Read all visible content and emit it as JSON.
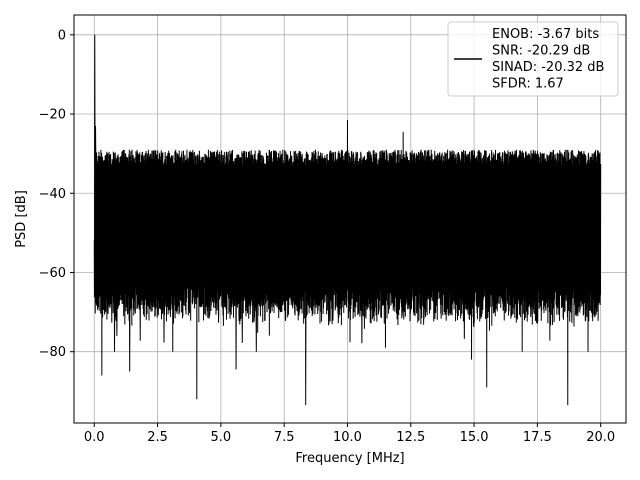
{
  "chart_data": {
    "type": "line",
    "title": "",
    "xlabel": "Frequency [MHz]",
    "ylabel": "PSD [dB]",
    "xlim": [
      -0.8,
      21.0
    ],
    "ylim": [
      -98,
      5
    ],
    "x_ticks": [
      0.0,
      2.5,
      5.0,
      7.5,
      10.0,
      12.5,
      15.0,
      17.5,
      20.0
    ],
    "x_tick_labels": [
      "0.0",
      "2.5",
      "5.0",
      "7.5",
      "10.0",
      "12.5",
      "15.0",
      "17.5",
      "20.0"
    ],
    "y_ticks": [
      0,
      -20,
      -40,
      -60,
      -80
    ],
    "y_tick_labels": [
      "0",
      "−20",
      "−40",
      "−60",
      "−80"
    ],
    "grid": true,
    "legend_position": "top-right",
    "series": [
      {
        "color": "#000000",
        "legend_lines": [
          "ENOB: -3.67 bits",
          "SNR: -20.29 dB",
          "SINAD: -20.32 dB",
          "SFDR: 1.67"
        ],
        "x_range": [
          0.0,
          20.0
        ],
        "noise_floor_upper_db": -29,
        "noise_floor_lower_db": -68,
        "peaks": [
          {
            "x": 0.02,
            "y": 0
          },
          {
            "x": 0.0,
            "y": -52
          },
          {
            "x": 0.05,
            "y": -23
          },
          {
            "x": 10.0,
            "y": -21.5
          },
          {
            "x": 12.2,
            "y": -24.5
          }
        ],
        "dips": [
          {
            "x": 0.3,
            "y": -86
          },
          {
            "x": 1.4,
            "y": -85
          },
          {
            "x": 4.05,
            "y": -92
          },
          {
            "x": 5.6,
            "y": -84.5
          },
          {
            "x": 8.35,
            "y": -93.5
          },
          {
            "x": 10.0,
            "y": -83
          },
          {
            "x": 14.9,
            "y": -82
          },
          {
            "x": 15.5,
            "y": -89
          },
          {
            "x": 18.7,
            "y": -93.5
          },
          {
            "x": 0.8,
            "y": -80
          },
          {
            "x": 3.1,
            "y": -80
          },
          {
            "x": 6.4,
            "y": -80
          },
          {
            "x": 11.5,
            "y": -79
          },
          {
            "x": 16.9,
            "y": -80
          },
          {
            "x": 19.5,
            "y": -80
          }
        ]
      }
    ]
  }
}
